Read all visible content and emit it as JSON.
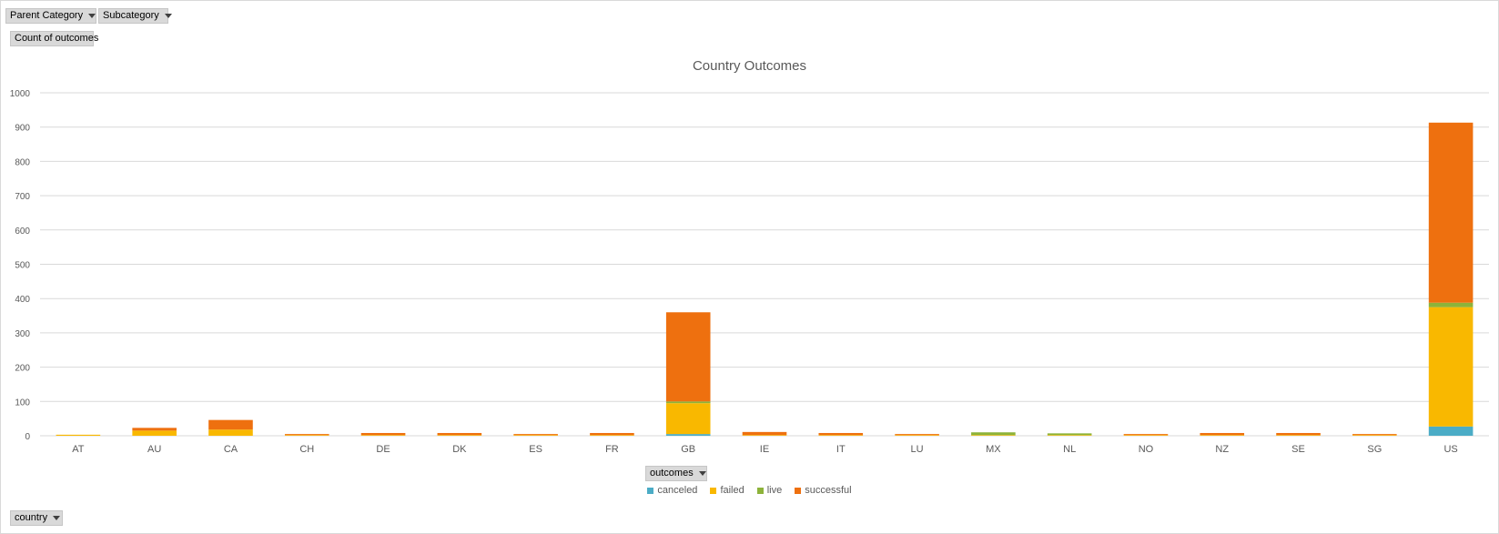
{
  "pivot": {
    "parent_category_label": "Parent Category",
    "subcategory_label": "Subcategory",
    "value_field_label": "Count of outcomes",
    "legend_field_label": "outcomes",
    "axis_field_label": "country"
  },
  "colors": {
    "canceled": "#4bacc6",
    "failed": "#f9b800",
    "live": "#8db33a",
    "successful": "#ee700f",
    "grid": "#d9d9d9"
  },
  "chart_data": {
    "type": "bar",
    "stacked": true,
    "title": "Country Outcomes",
    "xlabel": "",
    "ylabel": "",
    "ylim": [
      0,
      1000
    ],
    "yticks": [
      0,
      100,
      200,
      300,
      400,
      500,
      600,
      700,
      800,
      900,
      1000
    ],
    "grid": true,
    "legend_position": "bottom",
    "categories": [
      "AT",
      "AU",
      "CA",
      "CH",
      "DE",
      "DK",
      "ES",
      "FR",
      "GB",
      "IE",
      "IT",
      "LU",
      "MX",
      "NL",
      "NO",
      "NZ",
      "SE",
      "SG",
      "US"
    ],
    "series": [
      {
        "name": "canceled",
        "values": [
          0,
          0,
          0,
          0,
          0,
          0,
          0,
          0,
          5,
          0,
          0,
          0,
          0,
          0,
          0,
          0,
          0,
          0,
          27
        ]
      },
      {
        "name": "failed",
        "values": [
          3,
          15,
          18,
          2,
          2,
          2,
          2,
          2,
          90,
          2,
          2,
          2,
          2,
          2,
          2,
          2,
          2,
          2,
          348
        ]
      },
      {
        "name": "live",
        "values": [
          0,
          0,
          0,
          0,
          0,
          0,
          0,
          0,
          5,
          0,
          0,
          0,
          8,
          5,
          0,
          0,
          0,
          0,
          13
        ]
      },
      {
        "name": "successful",
        "values": [
          0,
          8,
          28,
          3,
          6,
          6,
          3,
          6,
          260,
          9,
          6,
          3,
          0,
          0,
          3,
          6,
          6,
          3,
          525
        ]
      }
    ]
  }
}
